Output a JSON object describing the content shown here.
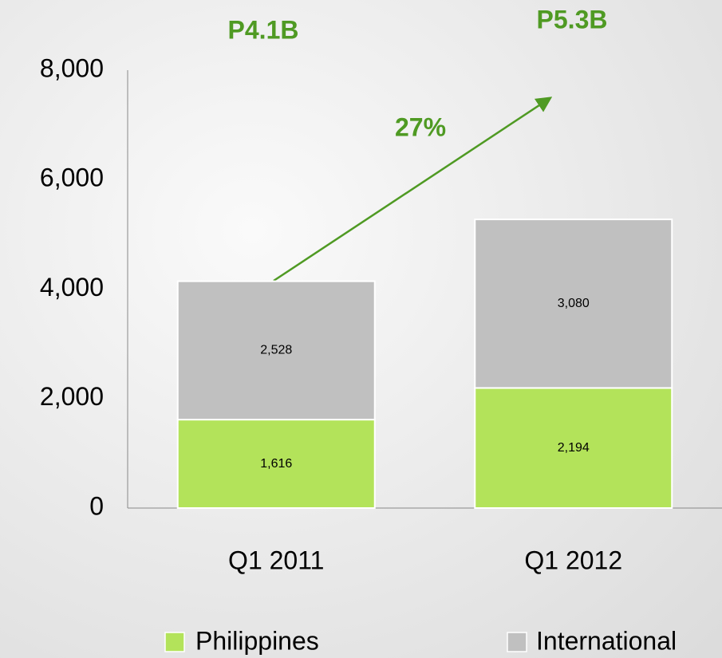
{
  "chart_data": {
    "type": "stacked-bar",
    "categories": [
      "Q1 2011",
      "Q1 2012"
    ],
    "series": [
      {
        "name": "Philippines",
        "color": "#b3e35a",
        "values": [
          1616,
          2194
        ],
        "value_labels": [
          "1,616",
          "2,194"
        ]
      },
      {
        "name": "International",
        "color": "#c0c0c0",
        "values": [
          2528,
          3080
        ],
        "value_labels": [
          "2,528",
          "3,080"
        ]
      }
    ],
    "ylim": [
      0,
      8000
    ],
    "yticks": [
      0,
      {
        "value": 2000,
        "label": "2,000"
      },
      {
        "value": 4000,
        "label": "4,000"
      },
      {
        "value": 6000,
        "label": "6,000"
      },
      {
        "value": 8000,
        "label": "8,000"
      }
    ],
    "annotations": [
      "P4.1B",
      "P5.3B",
      "27%"
    ],
    "legend": "bottom"
  }
}
